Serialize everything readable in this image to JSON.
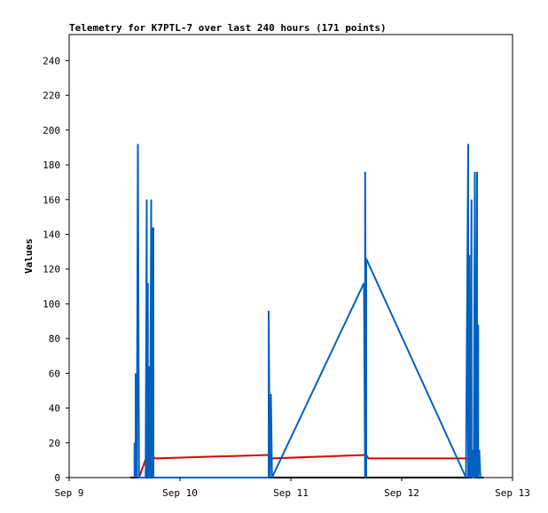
{
  "chart_data": {
    "type": "line",
    "title": "Telemetry for K7PTL-7 over last 240 hours (171 points)",
    "ylabel": "Values",
    "xlabel": "",
    "xlim": [
      0,
      4
    ],
    "ylim": [
      0,
      255
    ],
    "grid": false,
    "x_ticks": [
      {
        "value": 0,
        "label": "Sep 9"
      },
      {
        "value": 1,
        "label": "Sep 10"
      },
      {
        "value": 2,
        "label": "Sep 11"
      },
      {
        "value": 3,
        "label": "Sep 12"
      },
      {
        "value": 4,
        "label": "Sep 13"
      }
    ],
    "y_ticks": [
      0,
      20,
      40,
      60,
      80,
      100,
      120,
      140,
      160,
      180,
      200,
      220,
      240
    ],
    "series": [
      {
        "color": "#000000",
        "points": [
          [
            0.55,
            0
          ],
          [
            3.74,
            0
          ]
        ]
      },
      {
        "color": "#e00000",
        "points": [
          [
            0.63,
            0
          ],
          [
            0.71,
            14
          ],
          [
            0.78,
            11
          ],
          [
            1.0,
            11.5
          ],
          [
            1.8,
            13
          ],
          [
            1.82,
            11
          ],
          [
            2.68,
            13
          ],
          [
            2.7,
            11
          ],
          [
            3.6,
            11
          ],
          [
            3.7,
            10
          ]
        ]
      },
      {
        "color": "#0060c0",
        "points": [
          [
            0.59,
            0
          ],
          [
            0.59,
            20
          ],
          [
            0.6,
            0
          ],
          [
            0.6,
            60
          ],
          [
            0.61,
            0
          ],
          [
            0.62,
            192
          ],
          [
            0.63,
            0
          ],
          [
            0.69,
            0
          ],
          [
            0.7,
            160
          ],
          [
            0.7,
            0
          ],
          [
            0.71,
            112
          ],
          [
            0.71,
            0
          ],
          [
            0.72,
            64
          ],
          [
            0.72,
            0
          ],
          [
            0.73,
            0
          ],
          [
            0.74,
            160
          ],
          [
            0.74,
            0
          ],
          [
            0.75,
            144
          ],
          [
            0.75,
            0
          ],
          [
            0.76,
            144
          ],
          [
            0.76,
            0
          ],
          [
            1.8,
            0
          ],
          [
            1.8,
            96
          ],
          [
            1.81,
            0
          ],
          [
            1.82,
            48
          ],
          [
            1.83,
            0
          ],
          [
            2.66,
            112
          ],
          [
            2.67,
            0
          ],
          [
            2.67,
            176
          ],
          [
            2.68,
            0
          ],
          [
            2.68,
            126
          ],
          [
            3.58,
            0
          ],
          [
            3.6,
            192
          ],
          [
            3.6,
            0
          ],
          [
            3.61,
            128
          ],
          [
            3.61,
            0
          ],
          [
            3.62,
            80
          ],
          [
            3.62,
            0
          ],
          [
            3.63,
            160
          ],
          [
            3.63,
            0
          ],
          [
            3.64,
            16
          ],
          [
            3.64,
            0
          ],
          [
            3.65,
            0
          ],
          [
            3.66,
            176
          ],
          [
            3.66,
            0
          ],
          [
            3.67,
            88
          ],
          [
            3.67,
            0
          ],
          [
            3.68,
            176
          ],
          [
            3.68,
            0
          ],
          [
            3.69,
            88
          ],
          [
            3.69,
            0
          ],
          [
            3.7,
            16
          ],
          [
            3.71,
            0
          ]
        ]
      }
    ]
  }
}
